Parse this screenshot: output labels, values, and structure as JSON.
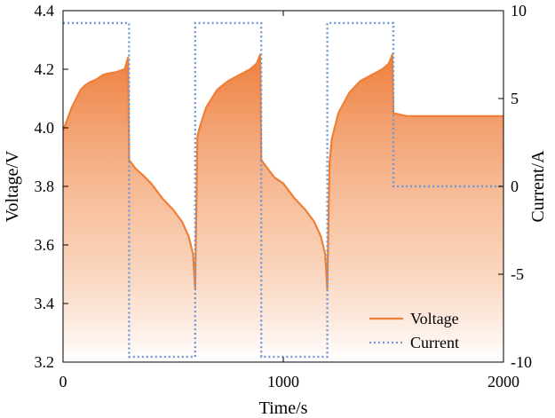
{
  "chart_data": {
    "type": "line",
    "title": "",
    "xlabel": "Time/s",
    "ylabel_left": "Voltage/V",
    "ylabel_right": "Current/A",
    "xlim": [
      0,
      2000
    ],
    "ylim_left": [
      3.2,
      4.4
    ],
    "ylim_right": [
      -10,
      10
    ],
    "x_ticks": [
      "0",
      "1000",
      "2000"
    ],
    "x_tick_values": [
      0,
      1000,
      2000
    ],
    "y_left_ticks": [
      "3.2",
      "3.4",
      "3.6",
      "3.8",
      "4.0",
      "4.2",
      "4.4"
    ],
    "y_left_tick_values": [
      3.2,
      3.4,
      3.6,
      3.8,
      4.0,
      4.2,
      4.4
    ],
    "y_right_ticks": [
      "-10",
      "-5",
      "0",
      "5",
      "10"
    ],
    "y_right_tick_values": [
      -10,
      -5,
      0,
      5,
      10
    ],
    "legend": [
      "Voltage",
      "Current"
    ],
    "legend_position": "bottom-right",
    "grid": false,
    "colors": {
      "voltage": "#f07f36",
      "current": "#6e98d6",
      "fill_top": "#ee7f3e"
    },
    "series": [
      {
        "name": "Voltage",
        "axis": "left",
        "style": "solid",
        "x": [
          0,
          5,
          20,
          40,
          60,
          80,
          100,
          120,
          150,
          180,
          200,
          240,
          280,
          295,
          300,
          330,
          360,
          400,
          450,
          500,
          540,
          570,
          590,
          600,
          610,
          620,
          650,
          700,
          750,
          800,
          850,
          880,
          895,
          900,
          930,
          960,
          1000,
          1050,
          1100,
          1140,
          1170,
          1190,
          1200,
          1210,
          1220,
          1250,
          1300,
          1350,
          1400,
          1450,
          1480,
          1495,
          1500,
          1560,
          1700,
          1850,
          2000
        ],
        "y": [
          3.99,
          4.0,
          4.03,
          4.07,
          4.1,
          4.13,
          4.145,
          4.155,
          4.165,
          4.18,
          4.185,
          4.19,
          4.2,
          4.24,
          3.89,
          3.86,
          3.84,
          3.81,
          3.76,
          3.72,
          3.68,
          3.63,
          3.57,
          3.45,
          3.97,
          4.0,
          4.07,
          4.13,
          4.16,
          4.18,
          4.2,
          4.22,
          4.25,
          3.89,
          3.86,
          3.83,
          3.81,
          3.76,
          3.72,
          3.68,
          3.63,
          3.57,
          3.45,
          3.88,
          3.96,
          4.05,
          4.12,
          4.16,
          4.18,
          4.2,
          4.22,
          4.25,
          4.05,
          4.04,
          4.04,
          4.04,
          4.04
        ]
      },
      {
        "name": "Current",
        "axis": "right",
        "style": "dotted",
        "x": [
          0,
          300,
          300,
          600,
          600,
          900,
          900,
          1200,
          1200,
          1500,
          1500,
          2000
        ],
        "y": [
          9.3,
          9.3,
          -9.7,
          -9.7,
          9.3,
          9.3,
          -9.7,
          -9.7,
          9.3,
          9.3,
          0,
          0
        ]
      }
    ]
  }
}
